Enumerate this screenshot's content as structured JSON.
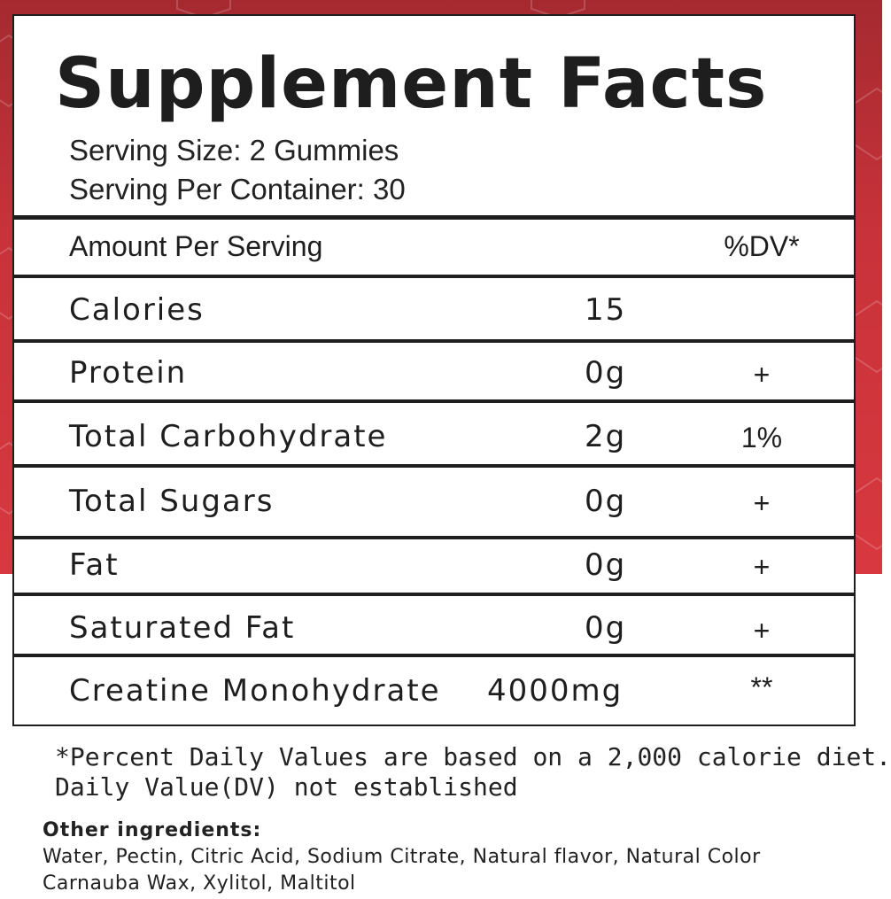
{
  "title": "Supplement Facts",
  "serving": {
    "size": "Serving Size: 2 Gummies",
    "per_container": "Serving Per Container: 30"
  },
  "header": {
    "amount_label": "Amount Per Serving",
    "dv_label": "%DV*"
  },
  "rows": [
    {
      "name": "Calories",
      "amount": "15",
      "dv": ""
    },
    {
      "name": "Protein",
      "amount": "0g",
      "dv": "+"
    },
    {
      "name": "Total Carbohydrate",
      "amount": "2g",
      "dv": "1%"
    },
    {
      "name": "Total Sugars",
      "amount": "0g",
      "dv": "+"
    },
    {
      "name": "Fat",
      "amount": "0g",
      "dv": "+"
    },
    {
      "name": "Saturated Fat",
      "amount": "0g",
      "dv": "+"
    },
    {
      "name": "Creatine Monohydrate",
      "amount": "4000mg",
      "dv": "**"
    }
  ],
  "footnotes": {
    "line1": "*Percent Daily Values are based on a 2,000 calorie diet.",
    "line2": "Daily Value(DV) not established"
  },
  "other_ingredients": {
    "heading": "Other ingredients:",
    "line1": "Water, Pectin, Citric Acid, Sodium Citrate, Natural flavor, Natural Color",
    "line2": "Carnauba Wax, Xylitol, Maltitol"
  },
  "colors": {
    "background_red": "#c8323a",
    "rule": "#1e1e1e"
  }
}
